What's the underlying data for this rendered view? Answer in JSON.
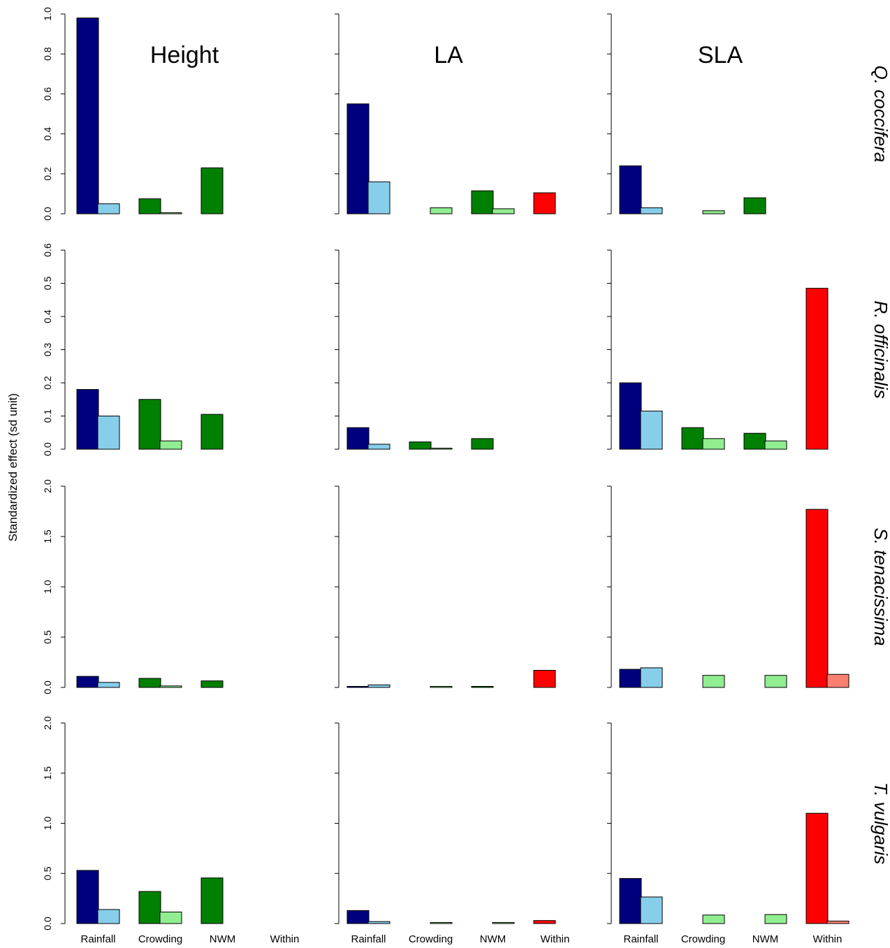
{
  "chart_data": {
    "type": "bar",
    "ylabel": "Standardized effect (sd unit)",
    "traits": [
      "Height",
      "LA",
      "SLA"
    ],
    "species": [
      "Q. coccifera",
      "R. officinalis",
      "S. tenacissima",
      "T. vulgaris"
    ],
    "categories": [
      "Rainfall",
      "Crowding",
      "NWM",
      "Within"
    ],
    "category_labels": [
      [
        "Rainfall",
        "Crowding",
        "NWM",
        "Within"
      ],
      [
        "Rainfall",
        "Crowding",
        "NWM",
        "Within"
      ],
      [
        "Rainfall",
        "Crowding",
        "NWM",
        "Within"
      ]
    ],
    "series_colors": {
      "Rainfall": [
        "#00007f",
        "#87ceeb"
      ],
      "Crowding": [
        "#008000",
        "#90ee90"
      ],
      "NWM": [
        "#008000",
        "#90ee90"
      ],
      "Within": [
        "#ff0000",
        "#fa8072"
      ]
    },
    "rows": [
      {
        "species": "Q. coccifera",
        "ylim": [
          0,
          1.0
        ],
        "yticks": [
          "0.0",
          "0.2",
          "0.4",
          "0.6",
          "0.8",
          "1.0"
        ],
        "panels": [
          {
            "trait": "Height",
            "bars": [
              [
                0.98,
                0.05
              ],
              [
                0.075,
                0.005
              ],
              [
                0.23,
                null
              ],
              [
                null,
                null
              ]
            ]
          },
          {
            "trait": "LA",
            "bars": [
              [
                0.55,
                0.16
              ],
              [
                null,
                0.03
              ],
              [
                0.115,
                0.025
              ],
              [
                0.105,
                null
              ]
            ]
          },
          {
            "trait": "SLA",
            "bars": [
              [
                0.24,
                0.03
              ],
              [
                null,
                0.015
              ],
              [
                0.08,
                null
              ],
              [
                null,
                null
              ]
            ]
          }
        ]
      },
      {
        "species": "R. officinalis",
        "ylim": [
          0,
          0.6
        ],
        "yticks": [
          "0.0",
          "0.1",
          "0.2",
          "0.3",
          "0.4",
          "0.5",
          "0.6"
        ],
        "panels": [
          {
            "trait": "Height",
            "bars": [
              [
                0.18,
                0.1
              ],
              [
                0.15,
                0.025
              ],
              [
                0.105,
                null
              ],
              [
                null,
                null
              ]
            ]
          },
          {
            "trait": "LA",
            "bars": [
              [
                0.065,
                0.015
              ],
              [
                0.022,
                0.002
              ],
              [
                0.032,
                null
              ],
              [
                null,
                null
              ]
            ]
          },
          {
            "trait": "SLA",
            "bars": [
              [
                0.2,
                0.115
              ],
              [
                0.065,
                0.032
              ],
              [
                0.048,
                0.025
              ],
              [
                0.485,
                null
              ]
            ]
          }
        ]
      },
      {
        "species": "S. tenacissima",
        "ylim": [
          0,
          2.0
        ],
        "yticks": [
          "0.0",
          "0.5",
          "1.0",
          "1.5",
          "2.0"
        ],
        "panels": [
          {
            "trait": "Height",
            "bars": [
              [
                0.11,
                0.05
              ],
              [
                0.09,
                0.015
              ],
              [
                0.065,
                null
              ],
              [
                null,
                null
              ]
            ]
          },
          {
            "trait": "LA",
            "bars": [
              [
                0.005,
                0.025
              ],
              [
                null,
                0.01
              ],
              [
                0.003,
                null
              ],
              [
                0.17,
                null
              ]
            ]
          },
          {
            "trait": "SLA",
            "bars": [
              [
                0.18,
                0.195
              ],
              [
                null,
                0.12
              ],
              [
                null,
                0.12
              ],
              [
                1.77,
                0.13
              ]
            ]
          }
        ]
      },
      {
        "species": "T. vulgaris",
        "ylim": [
          0,
          2.0
        ],
        "yticks": [
          "0.0",
          "0.5",
          "1.0",
          "1.5",
          "2.0"
        ],
        "panels": [
          {
            "trait": "Height",
            "bars": [
              [
                0.53,
                0.14
              ],
              [
                0.32,
                0.115
              ],
              [
                0.455,
                null
              ],
              [
                null,
                null
              ]
            ]
          },
          {
            "trait": "LA",
            "bars": [
              [
                0.13,
                0.02
              ],
              [
                null,
                0.005
              ],
              [
                null,
                0.005
              ],
              [
                0.03,
                null
              ]
            ]
          },
          {
            "trait": "SLA",
            "bars": [
              [
                0.45,
                0.265
              ],
              [
                null,
                0.085
              ],
              [
                null,
                0.09
              ],
              [
                1.1,
                0.025
              ]
            ]
          }
        ]
      }
    ]
  }
}
